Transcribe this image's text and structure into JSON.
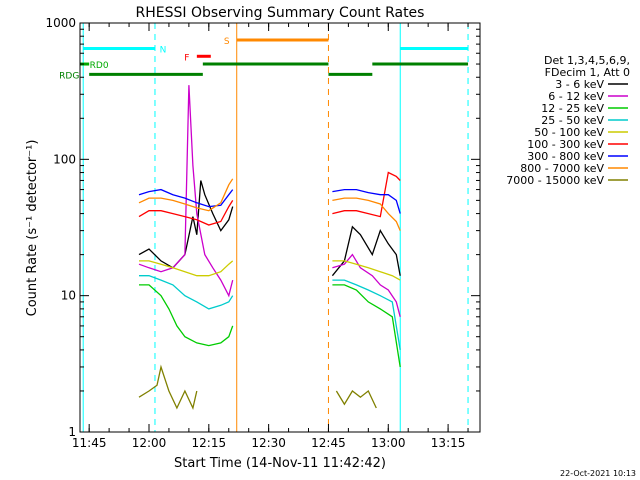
{
  "chart_data": {
    "type": "line",
    "title": "RHESSI Observing Summary Count Rates",
    "xlabel": "Start Time (14-Nov-11 11:42:42)",
    "ylabel": "Count Rate (s⁻¹ detector⁻¹)",
    "yscale": "log",
    "ylim": [
      1,
      1000
    ],
    "xlim": [
      "11:42:42",
      "13:23:00"
    ],
    "y_ticks": [
      {
        "value": 1,
        "label": "1"
      },
      {
        "value": 10,
        "label": "10"
      },
      {
        "value": 100,
        "label": "100"
      },
      {
        "value": 1000,
        "label": "1000"
      }
    ],
    "x_ticks": [
      {
        "time": "11:45",
        "label": "11:45"
      },
      {
        "time": "12:00",
        "label": "12:00"
      },
      {
        "time": "12:15",
        "label": "12:15"
      },
      {
        "time": "12:30",
        "label": "12:30"
      },
      {
        "time": "12:45",
        "label": "12:45"
      },
      {
        "time": "13:00",
        "label": "13:00"
      },
      {
        "time": "13:15",
        "label": "13:15"
      }
    ],
    "legend_header": [
      "Det 1,3,4,5,6,9,",
      "FDecim 1, Att 0"
    ],
    "legend_position": "right",
    "series": [
      {
        "name": "3 - 6 keV",
        "color": "#000000",
        "points": [
          [
            "11:57:30",
            20
          ],
          [
            "12:00",
            22
          ],
          [
            "12:03",
            18
          ],
          [
            "12:06",
            16
          ],
          [
            "12:09",
            20
          ],
          [
            "12:11",
            38
          ],
          [
            "12:12",
            28
          ],
          [
            "12:13",
            70
          ],
          [
            "12:14",
            55
          ],
          [
            "12:16",
            40
          ],
          [
            "12:18",
            30
          ],
          [
            "12:20",
            36
          ],
          [
            "12:21",
            45
          ],
          [
            "12:22",
            null
          ],
          [
            "12:45",
            null
          ],
          [
            "12:46",
            14
          ],
          [
            "12:49",
            18
          ],
          [
            "12:51",
            32
          ],
          [
            "12:53",
            28
          ],
          [
            "12:56",
            20
          ],
          [
            "12:58",
            30
          ],
          [
            "13:00",
            24
          ],
          [
            "13:02",
            20
          ],
          [
            "13:03",
            14
          ]
        ]
      },
      {
        "name": "6 - 12 keV",
        "color": "#cc00cc",
        "points": [
          [
            "11:57:30",
            17
          ],
          [
            "12:00",
            16
          ],
          [
            "12:03",
            15
          ],
          [
            "12:06",
            16
          ],
          [
            "12:09",
            20
          ],
          [
            "12:10",
            350
          ],
          [
            "12:11",
            90
          ],
          [
            "12:12",
            40
          ],
          [
            "12:14",
            20
          ],
          [
            "12:16",
            16
          ],
          [
            "12:18",
            13
          ],
          [
            "12:20",
            10
          ],
          [
            "12:21",
            13
          ],
          [
            "12:22",
            null
          ],
          [
            "12:45",
            null
          ],
          [
            "12:46",
            16
          ],
          [
            "12:49",
            17
          ],
          [
            "12:51",
            20
          ],
          [
            "12:53",
            16
          ],
          [
            "12:56",
            14
          ],
          [
            "12:58",
            12
          ],
          [
            "13:00",
            11
          ],
          [
            "13:02",
            9
          ],
          [
            "13:03",
            7
          ]
        ]
      },
      {
        "name": "12 - 25 keV",
        "color": "#00cc00",
        "points": [
          [
            "11:57:30",
            12
          ],
          [
            "12:00",
            12
          ],
          [
            "12:03",
            10
          ],
          [
            "12:05",
            8
          ],
          [
            "12:07",
            6
          ],
          [
            "12:09",
            5
          ],
          [
            "12:12",
            4.5
          ],
          [
            "12:15",
            4.3
          ],
          [
            "12:18",
            4.5
          ],
          [
            "12:20",
            5
          ],
          [
            "12:21",
            6
          ],
          [
            "12:22",
            null
          ],
          [
            "12:45",
            null
          ],
          [
            "12:46",
            12
          ],
          [
            "12:49",
            12
          ],
          [
            "12:52",
            11
          ],
          [
            "12:55",
            9
          ],
          [
            "12:58",
            8
          ],
          [
            "13:01",
            7
          ],
          [
            "13:03",
            3
          ]
        ]
      },
      {
        "name": "25 - 50 keV",
        "color": "#00cccc",
        "points": [
          [
            "11:57:30",
            14
          ],
          [
            "12:00",
            14
          ],
          [
            "12:03",
            13
          ],
          [
            "12:06",
            12
          ],
          [
            "12:09",
            10
          ],
          [
            "12:12",
            9
          ],
          [
            "12:15",
            8
          ],
          [
            "12:18",
            8.5
          ],
          [
            "12:20",
            9
          ],
          [
            "12:21",
            10
          ],
          [
            "12:22",
            null
          ],
          [
            "12:45",
            null
          ],
          [
            "12:46",
            13
          ],
          [
            "12:49",
            13
          ],
          [
            "12:52",
            12
          ],
          [
            "12:55",
            11
          ],
          [
            "12:58",
            10
          ],
          [
            "13:01",
            9
          ],
          [
            "13:03",
            4
          ]
        ]
      },
      {
        "name": "50 - 100 keV",
        "color": "#cccc00",
        "points": [
          [
            "11:57:30",
            18
          ],
          [
            "12:00",
            18
          ],
          [
            "12:03",
            17
          ],
          [
            "12:06",
            16
          ],
          [
            "12:09",
            15
          ],
          [
            "12:12",
            14
          ],
          [
            "12:15",
            14
          ],
          [
            "12:18",
            15
          ],
          [
            "12:20",
            17
          ],
          [
            "12:21",
            18
          ],
          [
            "12:22",
            null
          ],
          [
            "12:45",
            null
          ],
          [
            "12:46",
            18
          ],
          [
            "12:49",
            18
          ],
          [
            "12:52",
            17
          ],
          [
            "12:55",
            16
          ],
          [
            "12:58",
            15
          ],
          [
            "13:01",
            14
          ],
          [
            "13:03",
            13
          ]
        ]
      },
      {
        "name": "100 - 300 keV",
        "color": "#ff0000",
        "points": [
          [
            "11:57:30",
            38
          ],
          [
            "12:00",
            42
          ],
          [
            "12:03",
            42
          ],
          [
            "12:06",
            40
          ],
          [
            "12:09",
            38
          ],
          [
            "12:12",
            36
          ],
          [
            "12:15",
            33
          ],
          [
            "12:18",
            35
          ],
          [
            "12:20",
            45
          ],
          [
            "12:21",
            50
          ],
          [
            "12:22",
            null
          ],
          [
            "12:45",
            null
          ],
          [
            "12:46",
            40
          ],
          [
            "12:49",
            42
          ],
          [
            "12:52",
            42
          ],
          [
            "12:55",
            40
          ],
          [
            "12:58",
            38
          ],
          [
            "13:00",
            80
          ],
          [
            "13:02",
            75
          ],
          [
            "13:03",
            70
          ]
        ]
      },
      {
        "name": "300 - 800 keV",
        "color": "#0000ff",
        "points": [
          [
            "11:57:30",
            55
          ],
          [
            "12:00",
            58
          ],
          [
            "12:03",
            60
          ],
          [
            "12:06",
            55
          ],
          [
            "12:09",
            52
          ],
          [
            "12:12",
            48
          ],
          [
            "12:15",
            45
          ],
          [
            "12:18",
            46
          ],
          [
            "12:20",
            55
          ],
          [
            "12:21",
            60
          ],
          [
            "12:22",
            null
          ],
          [
            "12:45",
            null
          ],
          [
            "12:46",
            58
          ],
          [
            "12:49",
            60
          ],
          [
            "12:52",
            60
          ],
          [
            "12:55",
            57
          ],
          [
            "12:58",
            55
          ],
          [
            "13:00",
            55
          ],
          [
            "13:02",
            50
          ],
          [
            "13:03",
            40
          ]
        ]
      },
      {
        "name": "800 - 7000 keV",
        "color": "#ff8800",
        "points": [
          [
            "11:57:30",
            48
          ],
          [
            "12:00",
            52
          ],
          [
            "12:03",
            52
          ],
          [
            "12:06",
            50
          ],
          [
            "12:09",
            47
          ],
          [
            "12:12",
            44
          ],
          [
            "12:15",
            42
          ],
          [
            "12:18",
            48
          ],
          [
            "12:20",
            65
          ],
          [
            "12:21",
            72
          ],
          [
            "12:22",
            null
          ],
          [
            "12:45",
            null
          ],
          [
            "12:46",
            50
          ],
          [
            "12:49",
            52
          ],
          [
            "12:52",
            52
          ],
          [
            "12:55",
            50
          ],
          [
            "12:58",
            47
          ],
          [
            "13:00",
            40
          ],
          [
            "13:02",
            35
          ],
          [
            "13:03",
            30
          ]
        ]
      },
      {
        "name": "7000 - 15000 keV",
        "color": "#808000",
        "points": [
          [
            "11:57:30",
            1.8
          ],
          [
            "12:00",
            2
          ],
          [
            "12:02",
            2.2
          ],
          [
            "12:03",
            3
          ],
          [
            "12:05",
            2
          ],
          [
            "12:07",
            1.5
          ],
          [
            "12:09",
            2
          ],
          [
            "12:11",
            1.5
          ],
          [
            "12:12",
            2
          ],
          [
            "12:13",
            null
          ],
          [
            "12:46",
            null
          ],
          [
            "12:47",
            2
          ],
          [
            "12:49",
            1.6
          ],
          [
            "12:51",
            2
          ],
          [
            "12:53",
            1.8
          ],
          [
            "12:55",
            2
          ],
          [
            "12:57",
            1.5
          ]
        ]
      }
    ],
    "bars": [
      {
        "label": "N",
        "color": "#00ffff",
        "from": "11:43:30",
        "to": "12:01:30",
        "value": 650
      },
      {
        "label": "N",
        "color": "#00ffff",
        "from": "13:03:00",
        "to": "13:20:00",
        "value": 650
      },
      {
        "label": "S",
        "color": "#ff8800",
        "from": "12:22:00",
        "to": "12:45:00",
        "value": 750
      },
      {
        "label": "F",
        "color": "#ff0000",
        "from": "12:12:00",
        "to": "12:15:30",
        "value": 570
      },
      {
        "label": "RD0",
        "color": "#00aa00",
        "from": "11:42:42",
        "to": "11:45:00",
        "value": 500
      },
      {
        "label": "RDG",
        "color": "#008000",
        "from": "11:45:00",
        "to": "12:13:30",
        "value": 420
      },
      {
        "label": "RDG",
        "color": "#008000",
        "from": "12:13:30",
        "to": "12:45:00",
        "value": 500
      },
      {
        "label": "RDG",
        "color": "#008000",
        "from": "12:45:00",
        "to": "12:56:00",
        "value": 420
      },
      {
        "label": "RDG",
        "color": "#008000",
        "from": "12:56:00",
        "to": "13:20:00",
        "value": 500
      }
    ],
    "bar_labels": [
      {
        "text": "N",
        "color": "#00ffff",
        "time": "12:03:30",
        "value": 650
      },
      {
        "text": "S",
        "color": "#ff8800",
        "time": "12:19:30",
        "value": 750
      },
      {
        "text": "F",
        "color": "#ff0000",
        "time": "12:09:30",
        "value": 570
      },
      {
        "text": "RD0",
        "color": "#00aa00",
        "time": "11:47:30",
        "value": 500
      },
      {
        "text": "RDG",
        "color": "#008000",
        "time": "11:40:00",
        "value": 420
      }
    ],
    "vertical_lines": [
      {
        "time": "11:43:30",
        "color": "#00ffff",
        "style": "solid"
      },
      {
        "time": "12:01:30",
        "color": "#00ffff",
        "style": "dash"
      },
      {
        "time": "12:22:00",
        "color": "#ff8800",
        "style": "solid"
      },
      {
        "time": "12:45:00",
        "color": "#ff8800",
        "style": "dash"
      },
      {
        "time": "13:03:00",
        "color": "#00ffff",
        "style": "solid"
      },
      {
        "time": "13:20:00",
        "color": "#00ffff",
        "style": "dash"
      }
    ],
    "footer_timestamp": "22-Oct-2021 10:13"
  }
}
